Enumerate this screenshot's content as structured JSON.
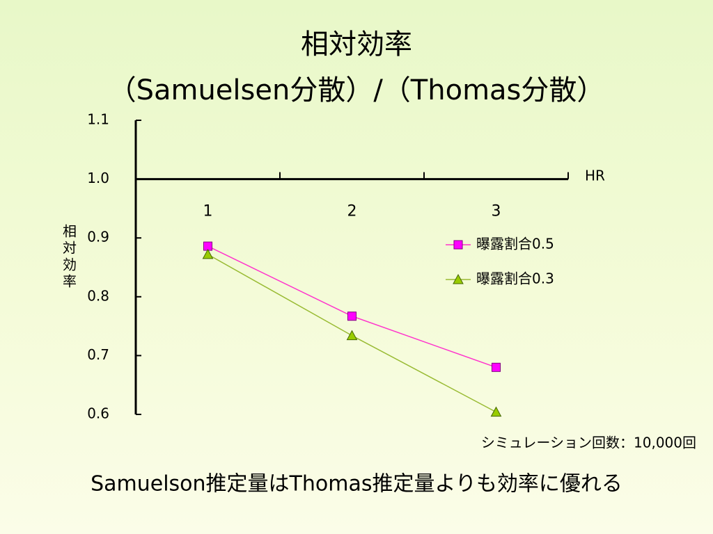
{
  "chart_data": {
    "type": "line",
    "title": "相対効率",
    "subtitle": "（Samuelsen分散）/（Thomas分散）",
    "x_label": "HR",
    "y_label": "相対効率",
    "categories": [
      "1",
      "2",
      "3"
    ],
    "series": [
      {
        "name": "曝露割合0.5",
        "color": "#ff00ff",
        "line_color": "#ff33cc",
        "marker": "square",
        "values": [
          0.886,
          0.767,
          0.68
        ]
      },
      {
        "name": "曝露割合0.3",
        "color": "#99cc00",
        "line_color": "#99bb33",
        "marker": "triangle",
        "values": [
          0.872,
          0.734,
          0.604
        ]
      }
    ],
    "ylim": [
      0.6,
      1.1
    ],
    "yticks": [
      0.6,
      0.7,
      0.8,
      0.9,
      {
        "value": 1,
        "label": "1.0"
      },
      1.1
    ],
    "x_axis_at": 1,
    "note": "シミュレーション回数：10,000回"
  },
  "conclusion": "Samuelson推定量はThomas推定量よりも効率に優れる"
}
